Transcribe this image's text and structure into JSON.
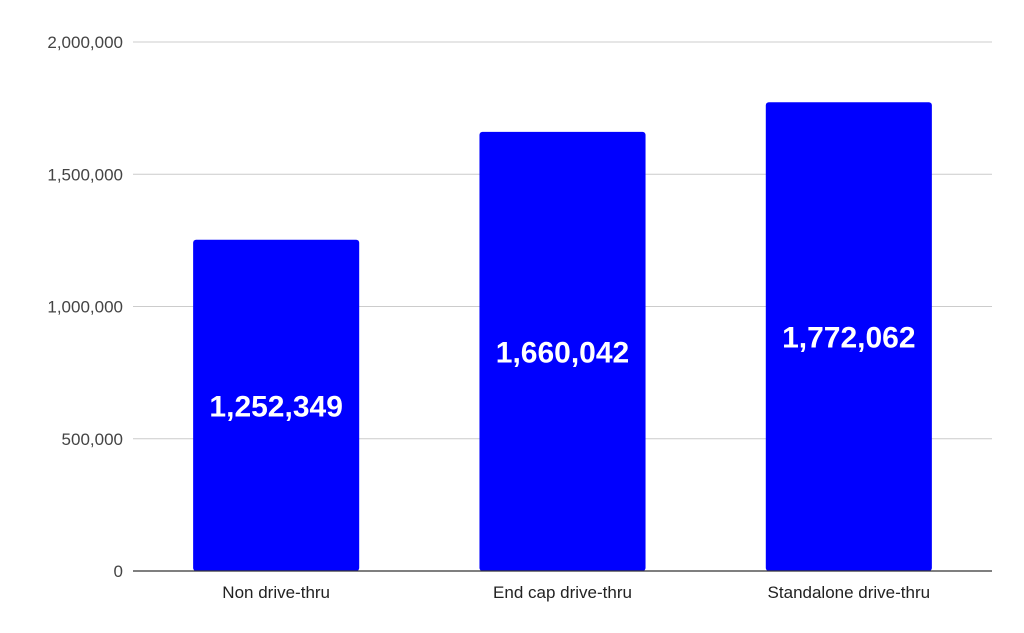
{
  "chart_data": {
    "type": "bar",
    "title": "",
    "xlabel": "",
    "ylabel": "",
    "categories": [
      "Non drive-thru",
      "End cap drive-thru",
      "Standalone drive-thru"
    ],
    "values": [
      1252349,
      1660042,
      1772062
    ],
    "data_labels": [
      "1,252,349",
      "1,660,042",
      "1,772,062"
    ],
    "ylim": [
      0,
      2000000
    ],
    "yticks": [
      0,
      500000,
      1000000,
      1500000,
      2000000
    ],
    "ytick_labels": [
      "0",
      "500,000",
      "1,000,000",
      "1,500,000",
      "2,000,000"
    ],
    "grid": true,
    "legend": "none",
    "bar_color": "#0000ff",
    "data_label_color": "#ffffff"
  }
}
